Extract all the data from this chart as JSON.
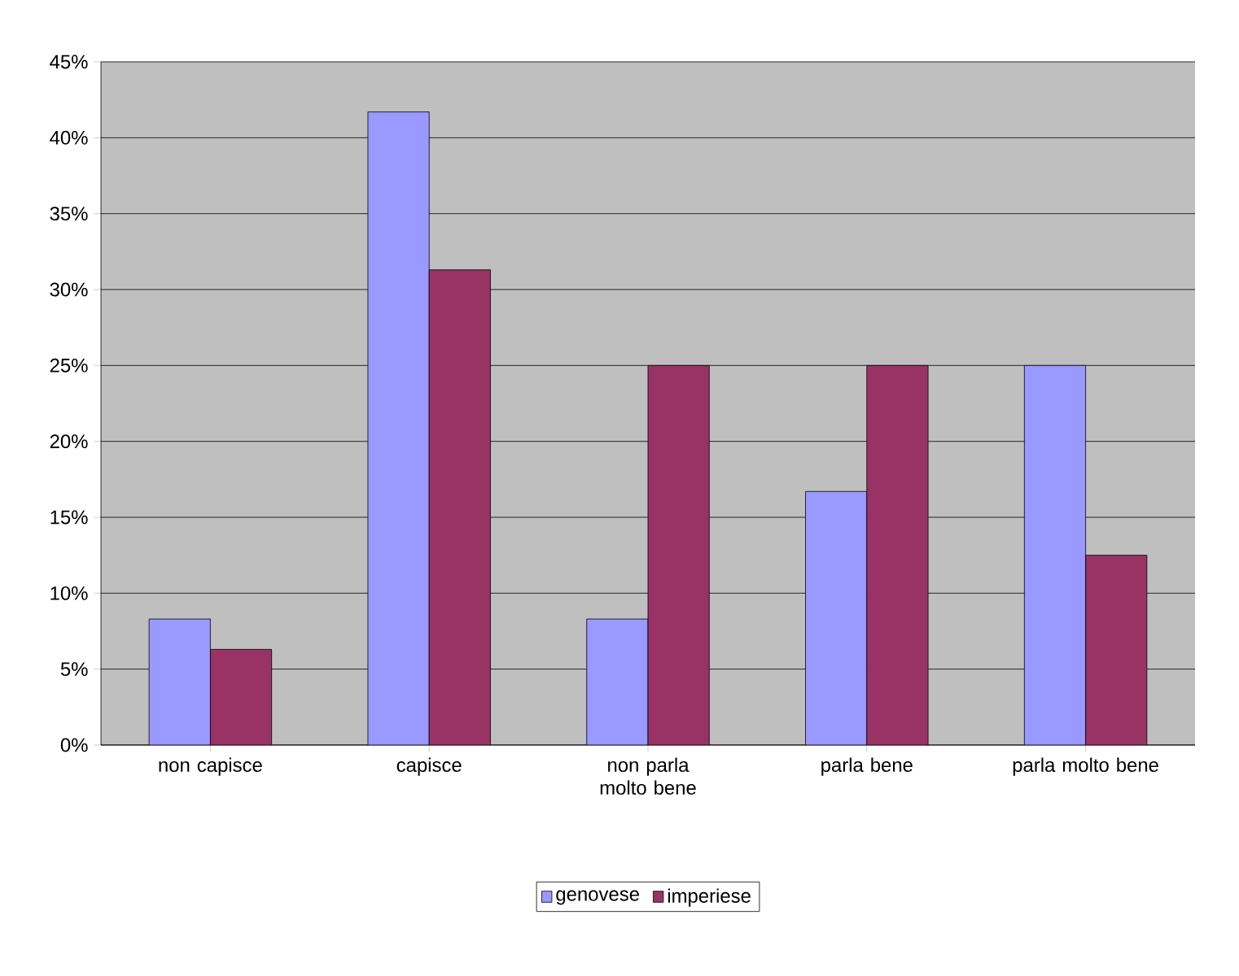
{
  "chart_data": {
    "type": "bar",
    "categories": [
      "non capisce",
      "capisce",
      "non parla molto bene",
      "parla bene",
      "parla molto bene"
    ],
    "series": [
      {
        "name": "genovese",
        "color": "#9999ff",
        "values": [
          8.3,
          41.7,
          8.3,
          16.7,
          25
        ]
      },
      {
        "name": "imperiese",
        "color": "#993366",
        "values": [
          6.3,
          31.3,
          25,
          25,
          12.5
        ]
      }
    ],
    "ylim": [
      0,
      45
    ],
    "yticks": [
      {
        "value": 0,
        "label": "0%"
      },
      {
        "value": 5,
        "label": "5%"
      },
      {
        "value": 10,
        "label": "10%"
      },
      {
        "value": 15,
        "label": "15%"
      },
      {
        "value": 20,
        "label": "20%"
      },
      {
        "value": 25,
        "label": "25%"
      },
      {
        "value": 30,
        "label": "30%"
      },
      {
        "value": 35,
        "label": "35%"
      },
      {
        "value": 40,
        "label": "40%"
      },
      {
        "value": 45,
        "label": "45%"
      }
    ],
    "grid": "y",
    "legend": "bottom"
  }
}
